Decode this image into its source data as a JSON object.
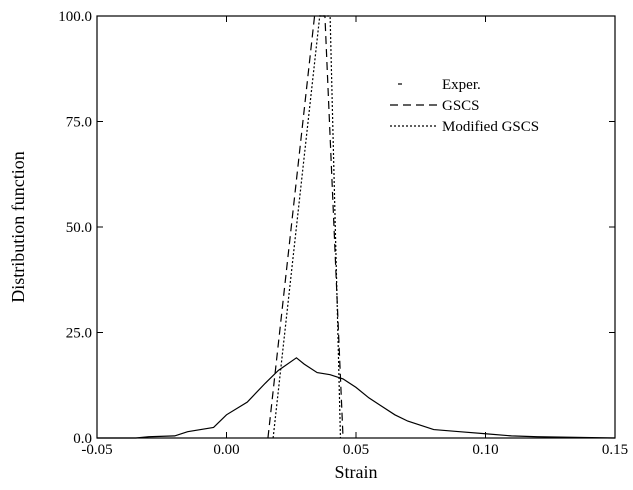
{
  "chart_data": {
    "type": "line",
    "xlabel": "Strain",
    "ylabel": "Distribution function",
    "xlim": [
      -0.05,
      0.15
    ],
    "ylim": [
      0,
      100
    ],
    "xticks": [
      {
        "value": -0.05,
        "label": "-0.05"
      },
      {
        "value": 0,
        "label": "0.00"
      },
      {
        "value": 0.05,
        "label": "0.05"
      },
      {
        "value": 0.1,
        "label": "0.10"
      },
      {
        "value": 0.15,
        "label": "0.15"
      }
    ],
    "yticks": [
      {
        "value": 0,
        "label": "0.0"
      },
      {
        "value": 25,
        "label": "25.0"
      },
      {
        "value": 50,
        "label": "50.0"
      },
      {
        "value": 75,
        "label": "75.0"
      },
      {
        "value": 100,
        "label": "100.0"
      }
    ],
    "series": [
      {
        "name": "Exper.",
        "color": "#000000",
        "dash": "none",
        "x": [
          -0.05,
          -0.035,
          -0.03,
          -0.02,
          -0.015,
          -0.005,
          0.0,
          0.008,
          0.015,
          0.02,
          0.027,
          0.03,
          0.035,
          0.04,
          0.045,
          0.05,
          0.055,
          0.06,
          0.065,
          0.07,
          0.075,
          0.08,
          0.09,
          0.1,
          0.11,
          0.12,
          0.15
        ],
        "values": [
          0,
          0,
          0.3,
          0.5,
          1.5,
          2.5,
          5.5,
          8.5,
          13,
          16,
          19,
          17.5,
          15.5,
          15,
          14,
          12,
          9.5,
          7.5,
          5.5,
          4,
          3,
          2,
          1.5,
          1,
          0.5,
          0.3,
          0
        ]
      },
      {
        "name": "GSCS",
        "color": "#000000",
        "dash": "8 5",
        "x": [
          0.016,
          0.034,
          0.038,
          0.045
        ],
        "values": [
          0,
          100,
          100,
          0
        ]
      },
      {
        "name": "Modified GSCS",
        "color": "#000000",
        "dash": "2 2",
        "x": [
          0.018,
          0.036,
          0.04,
          0.044
        ],
        "values": [
          0,
          100,
          100,
          0
        ]
      }
    ]
  }
}
